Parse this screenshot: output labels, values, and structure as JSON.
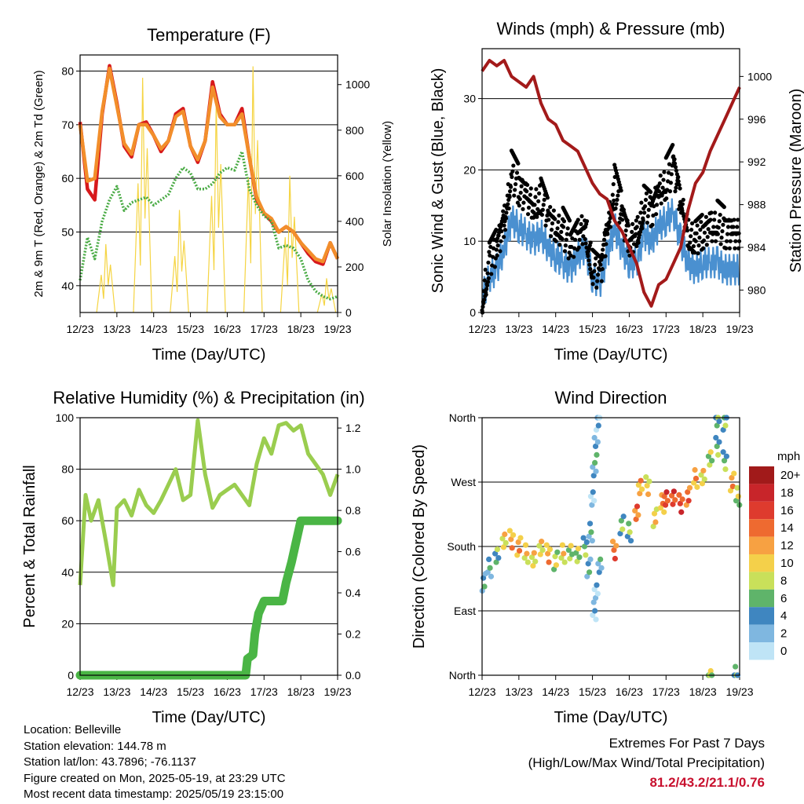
{
  "time_ticks": [
    "12/23",
    "13/23",
    "14/23",
    "15/23",
    "16/23",
    "17/23",
    "18/23",
    "19/23"
  ],
  "chart_data": [
    {
      "type": "line",
      "title": "Temperature (F)",
      "xlabel": "Time (Day/UTC)",
      "ylabel": "2m & 9m T (Red, Orange) & 2m Td (Green)",
      "y2label": "Solar Insolation (Yellow)",
      "ylim": [
        35,
        83
      ],
      "yticks": [
        40,
        50,
        60,
        70,
        80
      ],
      "y2lim": [
        0,
        1130
      ],
      "y2ticks": [
        0,
        200,
        400,
        600,
        800,
        1000
      ],
      "x": [
        12.0,
        12.2,
        12.4,
        12.6,
        12.8,
        13.0,
        13.2,
        13.4,
        13.6,
        13.8,
        14.0,
        14.2,
        14.4,
        14.6,
        14.8,
        15.0,
        15.2,
        15.4,
        15.6,
        15.8,
        16.0,
        16.2,
        16.4,
        16.6,
        16.8,
        17.0,
        17.2,
        17.4,
        17.6,
        17.8,
        18.0,
        18.2,
        18.4,
        18.6,
        18.8,
        19.0
      ],
      "series": [
        {
          "key": "t2m",
          "color": "#d7191c",
          "values": [
            70.5,
            58,
            56,
            72,
            81,
            74,
            66,
            64,
            70,
            70.5,
            68,
            65,
            67,
            72,
            73,
            66,
            63,
            67,
            78,
            72,
            70,
            70,
            73,
            64,
            56,
            53.5,
            52,
            50,
            51,
            50,
            48,
            46,
            44.5,
            44,
            48,
            45
          ]
        },
        {
          "key": "t9m",
          "color": "#f28e2b",
          "values": [
            70,
            59.5,
            60,
            72.5,
            80.5,
            73.5,
            66.5,
            64.5,
            70,
            70,
            68,
            65.5,
            67,
            71.5,
            72.5,
            66,
            63.5,
            67,
            77,
            71.5,
            70,
            70,
            72,
            64,
            56.5,
            53.5,
            52.5,
            50,
            51,
            50,
            48,
            46.5,
            45,
            44.5,
            48,
            45
          ]
        },
        {
          "key": "td2m",
          "color": "#4aab45",
          "values": [
            41,
            49,
            45,
            52,
            56,
            58.5,
            54,
            55.5,
            56,
            56.5,
            55,
            56,
            57,
            60,
            62,
            61,
            58,
            58,
            59,
            61,
            62,
            61.5,
            65,
            58,
            55,
            53,
            52,
            47,
            47.5,
            47,
            45,
            41,
            39,
            38,
            37.5,
            38
          ]
        }
      ],
      "solar": {
        "color": "#f5d442",
        "days": [
          12,
          13,
          14,
          15,
          16,
          17,
          18
        ],
        "peaks": [
          300,
          1030,
          450,
          930,
          1080,
          600,
          150
        ]
      }
    },
    {
      "type": "scatter",
      "title": "Winds (mph) & Pressure (mb)",
      "xlabel": "Time (Day/UTC)",
      "ylabel": "Sonic Wind & Gust (Blue, Black)",
      "y2label": "Station Pressure (Maroon)",
      "ylim": [
        0,
        37
      ],
      "yticks": [
        0,
        10,
        20,
        30
      ],
      "y2lim": [
        977.9,
        1002.6
      ],
      "y2ticks": [
        980,
        984,
        988,
        992,
        996,
        1000
      ],
      "pressure": {
        "color": "#a31a1a",
        "x": [
          12.0,
          12.2,
          12.4,
          12.6,
          12.8,
          13.0,
          13.2,
          13.4,
          13.6,
          13.8,
          14.0,
          14.2,
          14.4,
          14.6,
          14.8,
          15.0,
          15.2,
          15.4,
          15.6,
          15.8,
          16.0,
          16.2,
          16.4,
          16.6,
          16.8,
          17.0,
          17.2,
          17.4,
          17.6,
          17.8,
          18.0,
          18.2,
          18.4,
          18.6,
          18.8,
          19.0
        ],
        "values": [
          1000.5,
          1001.5,
          1001.0,
          1001.5,
          1000.0,
          999.5,
          999.0,
          1000.0,
          997.5,
          996.0,
          995.5,
          994.0,
          993.5,
          993.0,
          991.5,
          990.0,
          989.0,
          988.5,
          986.5,
          985.5,
          984.0,
          982.5,
          979.8,
          978.5,
          980.5,
          981.0,
          982.5,
          984.0,
          987.5,
          990.0,
          991.0,
          993.0,
          994.5,
          996.0,
          997.5,
          999.0
        ]
      },
      "wind_mean": [
        2,
        5,
        6,
        9,
        13,
        12,
        11,
        10,
        11,
        9,
        8,
        7,
        6,
        8,
        9,
        5,
        4,
        8,
        12,
        9,
        7,
        7,
        11,
        10,
        12,
        13,
        14,
        10,
        7,
        6,
        7,
        7,
        7,
        6,
        6,
        6
      ],
      "wind_gust": [
        3,
        8,
        10,
        14,
        20,
        18,
        17,
        16,
        17,
        14,
        13,
        12,
        10,
        12,
        13,
        7,
        6,
        13,
        18,
        14,
        11,
        12,
        16,
        15,
        18,
        19,
        21,
        16,
        12,
        11,
        12,
        13,
        13,
        12,
        12,
        12
      ],
      "gust_color": "#000000",
      "mean_color": "#4a90d0"
    },
    {
      "type": "line",
      "title": "Relative Humidity (%) & Precipitation (in)",
      "xlabel": "Time (Day/UTC)",
      "ylabel": "Percent & Total Rainfall",
      "ylim": [
        0,
        100
      ],
      "yticks": [
        0,
        20,
        40,
        60,
        80,
        100
      ],
      "y2lim": [
        0,
        1.25
      ],
      "y2ticks": [
        "0.0",
        "0.2",
        "0.4",
        "0.6",
        "0.8",
        "1.0",
        "1.2"
      ],
      "series": [
        {
          "key": "rh",
          "color": "#9acd4f",
          "x": [
            12.0,
            12.15,
            12.3,
            12.5,
            12.7,
            12.9,
            13.0,
            13.2,
            13.4,
            13.6,
            13.8,
            14.0,
            14.2,
            14.4,
            14.6,
            14.8,
            15.0,
            15.2,
            15.4,
            15.6,
            15.8,
            16.0,
            16.2,
            16.4,
            16.6,
            16.8,
            17.0,
            17.2,
            17.4,
            17.6,
            17.8,
            18.0,
            18.2,
            18.4,
            18.6,
            18.8,
            19.0
          ],
          "values": [
            35,
            70,
            60,
            68,
            52,
            35,
            65,
            68,
            62,
            72,
            66,
            63,
            68,
            74,
            80,
            68,
            70,
            99,
            78,
            65,
            70,
            72,
            74,
            70,
            66,
            82,
            92,
            86,
            97,
            98,
            95,
            97,
            86,
            82,
            78,
            70,
            78
          ]
        },
        {
          "key": "precip",
          "color": "#4ab545",
          "x": [
            12.0,
            16.5,
            16.55,
            16.7,
            16.75,
            16.85,
            17.0,
            17.5,
            17.6,
            17.75,
            18.0,
            19.0
          ],
          "values": [
            0,
            0,
            0.08,
            0.1,
            0.2,
            0.3,
            0.36,
            0.36,
            0.45,
            0.55,
            0.75,
            0.75
          ]
        }
      ]
    },
    {
      "type": "scatter",
      "title": "Wind Direction",
      "xlabel": "Time (Day/UTC)",
      "ylabel": "Direction (Colored By Speed)",
      "ylim": [
        0,
        360
      ],
      "yticks": [
        "North",
        "East",
        "South",
        "West",
        "North"
      ],
      "points_dir": [
        130,
        150,
        170,
        185,
        190,
        180,
        170,
        165,
        175,
        170,
        160,
        170,
        175,
        165,
        180,
        150,
        200,
        250,
        285,
        320,
        355,
        90,
        120,
        150,
        175,
        210,
        200,
        230,
        260,
        265,
        220,
        240,
        250,
        245,
        240,
        250,
        275,
        280,
        300,
        320,
        355,
        0,
        0,
        355,
        300,
        270,
        250
      ],
      "points_x": [
        12.05,
        12.2,
        12.4,
        12.6,
        12.8,
        13.0,
        13.2,
        13.4,
        13.6,
        13.8,
        14.0,
        14.2,
        14.4,
        14.6,
        14.8,
        14.9,
        14.95,
        15.0,
        15.05,
        15.1,
        15.15,
        15.05,
        15.1,
        15.2,
        15.6,
        15.8,
        16.0,
        16.2,
        16.3,
        16.5,
        16.7,
        16.9,
        17.0,
        17.2,
        17.4,
        17.6,
        17.8,
        18.0,
        18.2,
        18.4,
        18.6,
        18.9,
        18.2,
        18.4,
        18.6,
        18.8,
        18.95
      ],
      "points_speed": [
        3,
        4,
        6,
        10,
        12,
        11,
        10,
        10,
        9,
        11,
        8,
        9,
        8,
        7,
        6,
        4,
        3,
        2,
        3,
        3,
        2,
        2,
        2,
        3,
        14,
        6,
        6,
        14,
        12,
        10,
        10,
        11,
        16,
        15,
        15,
        13,
        12,
        9,
        8,
        6,
        6,
        6,
        7,
        6,
        5,
        12,
        8
      ],
      "legend_title": "mph",
      "legend_labels": [
        "20+",
        "18",
        "16",
        "14",
        "12",
        "10",
        "8",
        "6",
        "4",
        "2",
        "0"
      ],
      "legend_colors": [
        "#a11a1a",
        "#c8252a",
        "#de3b2e",
        "#ee6a30",
        "#f7a142",
        "#f4d04a",
        "#c9e05a",
        "#5fb46a",
        "#3f86c0",
        "#7fb7e0",
        "#bfe4f6"
      ]
    }
  ],
  "info": {
    "location": "Location: Belleville",
    "elevation": "Station elevation: 144.78 m",
    "latlon": "Station lat/lon: 43.7896; -76.1137",
    "created": "Figure created on Mon, 2025-05-19, at 23:29 UTC",
    "recent": "Most recent data timestamp: 2025/05/19 23:15:00"
  },
  "extremes": {
    "title": "Extremes For Past 7 Days",
    "subtitle": "(High/Low/Max Wind/Total Precipitation)",
    "values": "81.2/43.2/21.1/0.76"
  }
}
